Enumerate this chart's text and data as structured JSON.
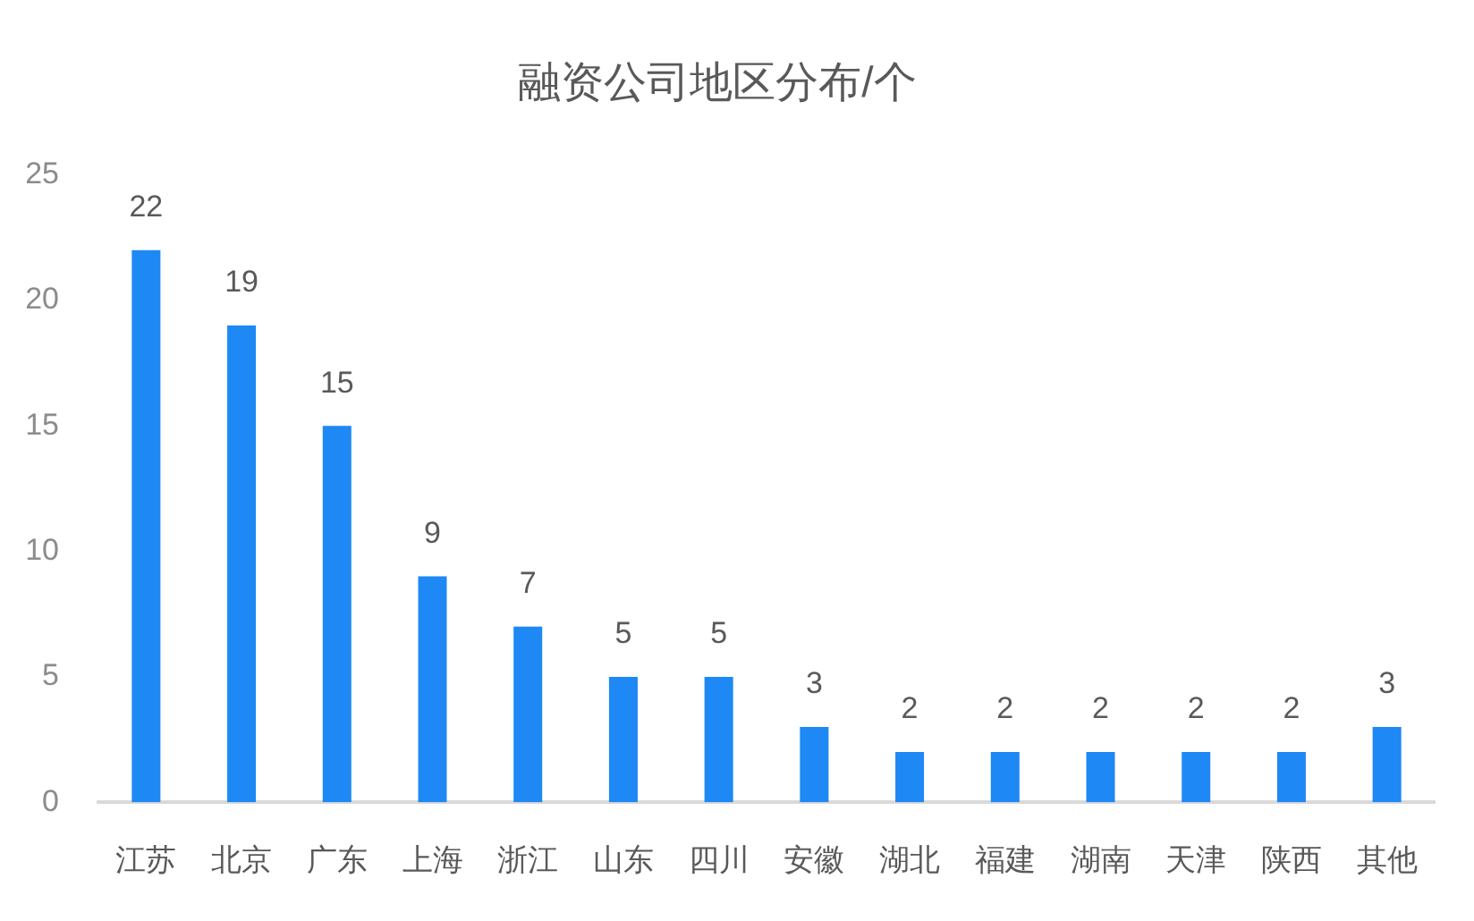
{
  "chart_data": {
    "type": "bar",
    "title": "融资公司地区分布/个",
    "categories": [
      "江苏",
      "北京",
      "广东",
      "上海",
      "浙江",
      "山东",
      "四川",
      "安徽",
      "湖北",
      "福建",
      "湖南",
      "天津",
      "陕西",
      "其他"
    ],
    "values": [
      22,
      19,
      15,
      9,
      7,
      5,
      5,
      3,
      2,
      2,
      2,
      2,
      2,
      3
    ],
    "color": "#1e88f5",
    "ylim": [
      0,
      25
    ],
    "yticks": [
      0,
      5,
      10,
      15,
      20,
      25
    ],
    "grid": false,
    "legend": false,
    "data_labels": true
  }
}
